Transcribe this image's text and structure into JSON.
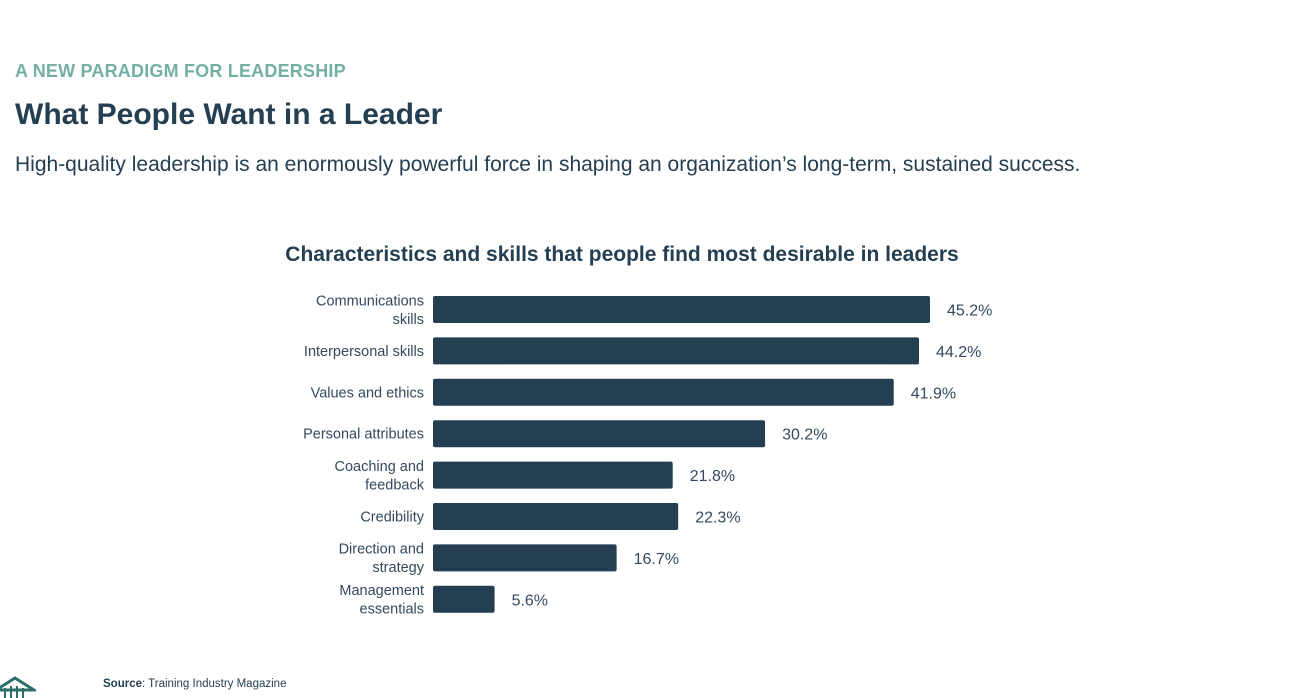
{
  "header": {
    "eyebrow": "A NEW PARADIGM FOR LEADERSHIP",
    "title": "What People Want in a Leader",
    "lead": "High-quality leadership is an enormously powerful force in shaping an organization’s long-term, sustained success."
  },
  "chart_data": {
    "type": "bar",
    "orientation": "horizontal",
    "title": "Characteristics and skills that people find most desirable in leaders",
    "categories": [
      [
        "Communications",
        "skills"
      ],
      [
        "Interpersonal skills"
      ],
      [
        "Values and ethics"
      ],
      [
        "Personal attributes"
      ],
      [
        "Coaching and",
        "feedback"
      ],
      [
        "Credibility"
      ],
      [
        "Direction and",
        "strategy"
      ],
      [
        "Management",
        "essentials"
      ]
    ],
    "values": [
      45.2,
      44.2,
      41.9,
      30.2,
      21.8,
      22.3,
      16.7,
      5.6
    ],
    "value_labels": [
      "45.2%",
      "44.2%",
      "41.9%",
      "30.2%",
      "21.8%",
      "22.3%",
      "16.7%",
      "5.6%"
    ],
    "xlim": [
      0,
      45.2
    ],
    "grid": false,
    "legend": "none",
    "bar_color": "#243f52"
  },
  "footer": {
    "source_label": "Source",
    "source_text": ": Training Industry Magazine",
    "logo_icon": "building-logo-icon",
    "logo_color": "#2d6e68"
  }
}
